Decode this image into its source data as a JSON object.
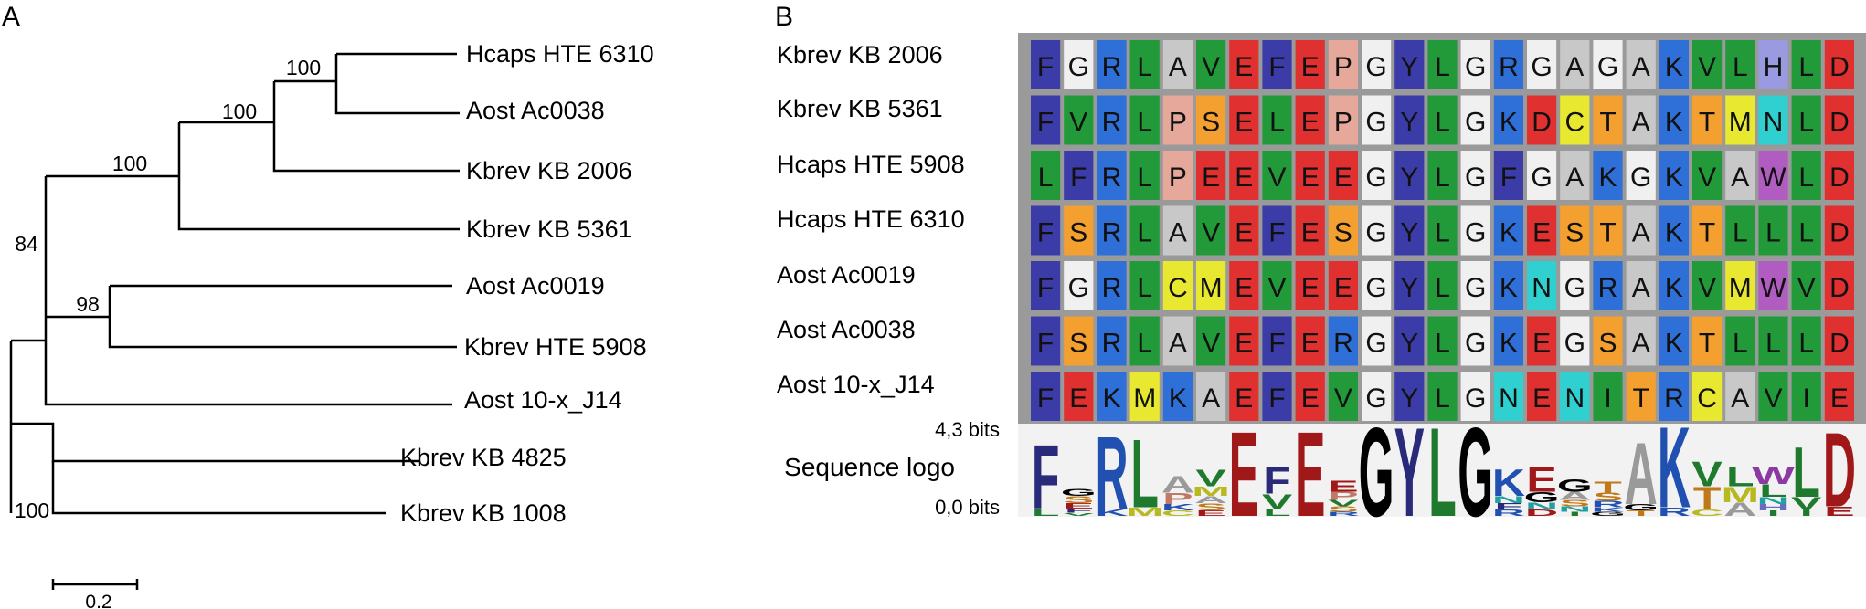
{
  "panels": {
    "a": "A",
    "b": "B"
  },
  "tree": {
    "taxa": [
      "Hcaps HTE 6310",
      "Aost Ac0038",
      "Kbrev KB 2006",
      "Kbrev KB 5361",
      "Aost Ac0019",
      "Kbrev HTE 5908",
      "Aost 10-x_J14",
      "Kbrev KB 4825",
      "Kbrev KB 1008"
    ],
    "bootstrap": [
      "100",
      "100",
      "100",
      "84",
      "98",
      "100"
    ],
    "scale_label": "0.2"
  },
  "alignment": {
    "rows": [
      {
        "name": "Kbrev KB 2006",
        "seq": "FGRLAVEFEPGYLGRGAGAKVLHLD"
      },
      {
        "name": "Kbrev KB 5361",
        "seq": "FVRLPSELEPGYLGKDCTAKTMNLD"
      },
      {
        "name": "Hcaps HTE 5908",
        "seq": "LFRLPEEVEEGYLGFGAKGKVAWLD"
      },
      {
        "name": "Hcaps HTE 6310",
        "seq": "FSRLAVEFESGYLGKESTAKTLLLD"
      },
      {
        "name": "Aost Ac0019",
        "seq": "FGRLCMEVEEGYLGKNGRAKVMWVD"
      },
      {
        "name": "Aost Ac0038",
        "seq": "FSRLAVEFERGYLGKEGSAKTLLLD"
      },
      {
        "name": "Aost 10-x_J14",
        "seq": "FEKMKAEFEVGYLGNENITRCAVIE"
      }
    ],
    "residue_colors": {
      "F": "#3c3ca8",
      "W": "#b05cc0",
      "Y": "#3c3ca8",
      "H": "#9a9ae0",
      "G": "#f0f0f0",
      "A": "#c8c8c8",
      "R": "#2f6fd8",
      "K": "#2f6fd8",
      "L": "#239a3a",
      "V": "#239a3a",
      "I": "#239a3a",
      "M": "#e8e830",
      "E": "#e03030",
      "D": "#e03030",
      "P": "#e6a89a",
      "S": "#f4a030",
      "T": "#f4a030",
      "N": "#30d0d0",
      "Q": "#30d0d0",
      "C": "#e8e830"
    },
    "logo": {
      "label": "Sequence logo",
      "max_label": "4,3 bits",
      "min_label": "0,0 bits",
      "letter_colors": {
        "F": "#2a2a7a",
        "W": "#8a3aa0",
        "Y": "#2a2a7a",
        "H": "#6a6ac0",
        "G": "#000000",
        "A": "#9a9a9a",
        "R": "#2050b0",
        "K": "#2050b0",
        "L": "#1f7a2e",
        "V": "#1f7a2e",
        "I": "#1f7a2e",
        "M": "#b8b820",
        "E": "#a01818",
        "D": "#a01818",
        "P": "#c07868",
        "S": "#c07818",
        "T": "#c07818",
        "N": "#20a0a0",
        "Q": "#20a0a0",
        "C": "#b8b820"
      },
      "columns": [
        {
          "stack": [
            [
              "F",
              3.1
            ],
            [
              "L",
              0.35
            ]
          ]
        },
        {
          "stack": [
            [
              "S",
              0.35
            ],
            [
              "G",
              0.35
            ],
            [
              "E",
              0.25
            ],
            [
              "F",
              0.2
            ],
            [
              "V",
              0.15
            ]
          ]
        },
        {
          "stack": [
            [
              "R",
              3.5
            ],
            [
              "K",
              0.35
            ]
          ]
        },
        {
          "stack": [
            [
              "L",
              3.3
            ],
            [
              "M",
              0.4
            ]
          ]
        },
        {
          "stack": [
            [
              "A",
              0.8
            ],
            [
              "P",
              0.55
            ],
            [
              "K",
              0.3
            ],
            [
              "C",
              0.25
            ]
          ]
        },
        {
          "stack": [
            [
              "V",
              0.8
            ],
            [
              "M",
              0.45
            ],
            [
              "S",
              0.35
            ],
            [
              "A",
              0.35
            ],
            [
              "E",
              0.25
            ]
          ]
        },
        {
          "stack": [
            [
              "E",
              4.1
            ]
          ]
        },
        {
          "stack": [
            [
              "F",
              1.3
            ],
            [
              "V",
              0.7
            ],
            [
              "L",
              0.35
            ]
          ]
        },
        {
          "stack": [
            [
              "E",
              4.1
            ]
          ]
        },
        {
          "stack": [
            [
              "E",
              0.55
            ],
            [
              "P",
              0.4
            ],
            [
              "V",
              0.3
            ],
            [
              "S",
              0.25
            ],
            [
              "R",
              0.2
            ]
          ]
        },
        {
          "stack": [
            [
              "G",
              4.3
            ]
          ]
        },
        {
          "stack": [
            [
              "Y",
              4.3
            ]
          ]
        },
        {
          "stack": [
            [
              "L",
              4.3
            ]
          ]
        },
        {
          "stack": [
            [
              "G",
              4.3
            ]
          ]
        },
        {
          "stack": [
            [
              "K",
              1.3
            ],
            [
              "N",
              0.35
            ],
            [
              "R",
              0.3
            ],
            [
              "F",
              0.3
            ]
          ]
        },
        {
          "stack": [
            [
              "E",
              1.2
            ],
            [
              "G",
              0.5
            ],
            [
              "N",
              0.35
            ],
            [
              "D",
              0.3
            ]
          ]
        },
        {
          "stack": [
            [
              "G",
              0.6
            ],
            [
              "A",
              0.4
            ],
            [
              "S",
              0.3
            ],
            [
              "N",
              0.25
            ],
            [
              "I",
              0.2
            ]
          ]
        },
        {
          "stack": [
            [
              "T",
              0.55
            ],
            [
              "S",
              0.4
            ],
            [
              "R",
              0.3
            ],
            [
              "G",
              0.2
            ],
            [
              "K",
              0.2
            ]
          ]
        },
        {
          "stack": [
            [
              "A",
              3.0
            ],
            [
              "G",
              0.3
            ],
            [
              "T",
              0.25
            ]
          ]
        },
        {
          "stack": [
            [
              "K",
              3.9
            ],
            [
              "R",
              0.4
            ]
          ]
        },
        {
          "stack": [
            [
              "V",
              1.2
            ],
            [
              "T",
              1.1
            ],
            [
              "C",
              0.3
            ]
          ]
        },
        {
          "stack": [
            [
              "L",
              0.95
            ],
            [
              "M",
              0.75
            ],
            [
              "A",
              0.65
            ]
          ]
        },
        {
          "stack": [
            [
              "W",
              0.85
            ],
            [
              "L",
              0.6
            ],
            [
              "N",
              0.35
            ],
            [
              "H",
              0.3
            ],
            [
              "I",
              0.25
            ]
          ]
        },
        {
          "stack": [
            [
              "L",
              2.4
            ],
            [
              "V",
              0.6
            ],
            [
              "I",
              0.3
            ]
          ]
        },
        {
          "stack": [
            [
              "D",
              3.6
            ],
            [
              "E",
              0.45
            ]
          ]
        }
      ]
    }
  }
}
